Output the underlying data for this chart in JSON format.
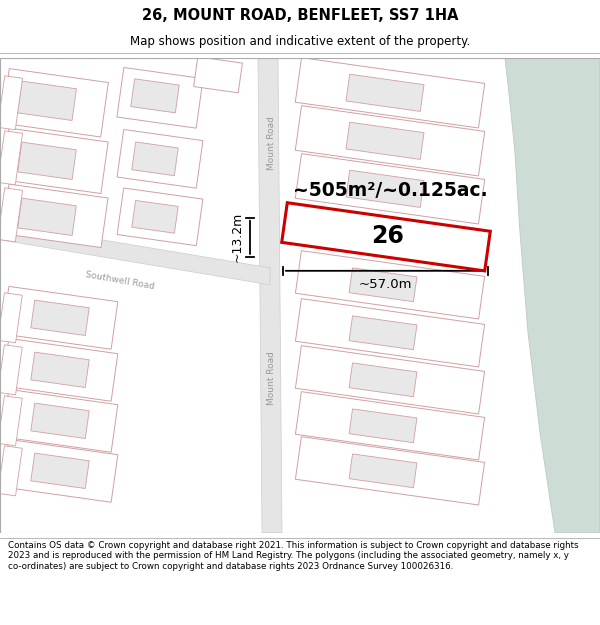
{
  "title": "26, MOUNT ROAD, BENFLEET, SS7 1HA",
  "subtitle": "Map shows position and indicative extent of the property.",
  "footer": "Contains OS data © Crown copyright and database right 2021. This information is subject to Crown copyright and database rights 2023 and is reproduced with the permission of HM Land Registry. The polygons (including the associated geometry, namely x, y co-ordinates) are subject to Crown copyright and database rights 2023 Ordnance Survey 100026316.",
  "map_bg": "#ffffff",
  "road_color": "#e8e8e8",
  "block_fill": "#e8e8e8",
  "block_border": "#d0a0a0",
  "plot_fill": "#ffffff",
  "plot_border": "#d0a0a0",
  "highlight_fill": "#ffffff",
  "highlight_border": "#cc0000",
  "green_fill": "#cdddd5",
  "green_border": "#b8ccc4",
  "area_text": "~505m²/~0.125ac.",
  "width_text": "~57.0m",
  "height_text": "~13.2m",
  "property_label": "26",
  "mount_road_label": "Mount Road",
  "southwell_road_label": "Southwell Road",
  "title_fontsize": 10.5,
  "subtitle_fontsize": 8.5,
  "footer_fontsize": 6.3
}
